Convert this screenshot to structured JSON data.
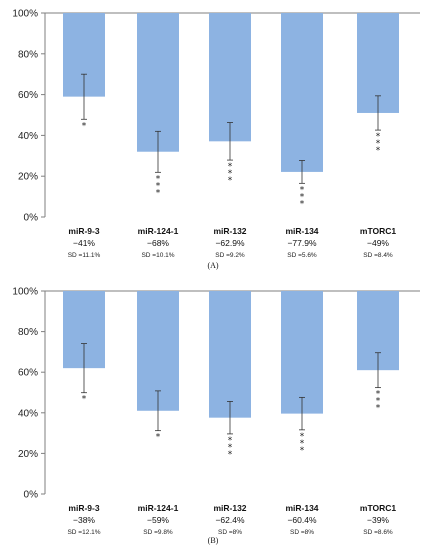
{
  "chart_data": [
    {
      "type": "bar",
      "panel_label": "(A)",
      "ylim": [
        0,
        100
      ],
      "y_ticks": [
        "0%",
        "20%",
        "40%",
        "60%",
        "80%",
        "100%"
      ],
      "grid": false,
      "bar_color": "#8db3e2",
      "orientation": "hanging-from-top",
      "categories": [
        "miR-9-3",
        "miR-124-1",
        "miR-132",
        "miR-134",
        "mTORC1"
      ],
      "values": [
        59,
        32,
        37.1,
        22.1,
        51
      ],
      "error_upper": [
        70,
        42,
        46.3,
        27.7,
        59.4
      ],
      "error_lower": [
        47.9,
        21.9,
        27.9,
        16.5,
        42.6
      ],
      "reduction_labels": [
        "−41%",
        "−68%",
        "−62.9%",
        "−77.9%",
        "−49%"
      ],
      "sd_labels": [
        "SD =11.1%",
        "SD =10.1%",
        "SD =9.2%",
        "SD =5.6%",
        "SD =8.4%"
      ],
      "significance": [
        "*",
        "***",
        "***",
        "***",
        "***"
      ]
    },
    {
      "type": "bar",
      "panel_label": "(B)",
      "ylim": [
        0,
        100
      ],
      "y_ticks": [
        "0%",
        "20%",
        "40%",
        "60%",
        "80%",
        "100%"
      ],
      "grid": false,
      "bar_color": "#8db3e2",
      "orientation": "hanging-from-top",
      "categories": [
        "miR-9-3",
        "miR-124-1",
        "miR-132",
        "miR-134",
        "mTORC1"
      ],
      "values": [
        62,
        41,
        37.6,
        39.6,
        61
      ],
      "error_upper": [
        74.1,
        50.8,
        45.6,
        47.6,
        69.6
      ],
      "error_lower": [
        49.9,
        31.2,
        29.6,
        31.6,
        52.4
      ],
      "reduction_labels": [
        "−38%",
        "−59%",
        "−62.4%",
        "−60.4%",
        "−39%"
      ],
      "sd_labels": [
        "SD =12.1%",
        "SD =9.8%",
        "SD =8%",
        "SD =8%",
        "SD =8.6%"
      ],
      "significance": [
        "*",
        "*",
        "***",
        "***",
        "***"
      ]
    }
  ]
}
